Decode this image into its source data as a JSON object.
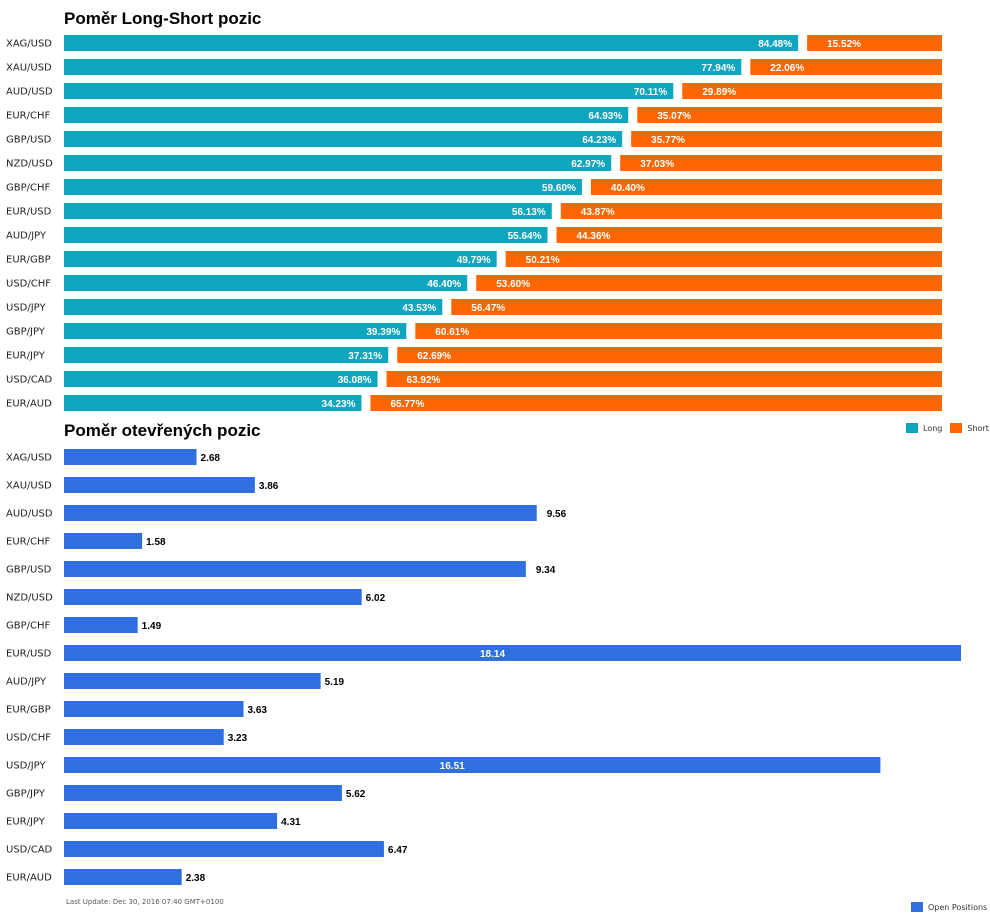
{
  "colors": {
    "long": "#0ea5be",
    "short": "#ff6600",
    "open": "#2f6fde"
  },
  "chart_data": [
    {
      "type": "bar",
      "title": "Poměr Long-Short pozic",
      "categories": [
        "XAG/USD",
        "XAU/USD",
        "AUD/USD",
        "EUR/CHF",
        "GBP/USD",
        "NZD/USD",
        "GBP/CHF",
        "EUR/USD",
        "AUD/JPY",
        "EUR/GBP",
        "USD/CHF",
        "USD/JPY",
        "GBP/JPY",
        "EUR/JPY",
        "USD/CAD",
        "EUR/AUD"
      ],
      "series": [
        {
          "name": "Long",
          "values": [
            84.48,
            77.94,
            70.11,
            64.93,
            64.23,
            62.97,
            59.6,
            56.13,
            55.64,
            49.79,
            46.4,
            43.53,
            39.39,
            37.31,
            36.08,
            34.23
          ],
          "labels": [
            "84.48%",
            "77.94%",
            "70.11%",
            "64.93%",
            "64.23%",
            "62.97%",
            "59.60%",
            "56.13%",
            "55.64%",
            "49.79%",
            "46.40%",
            "43.53%",
            "39.39%",
            "37.31%",
            "36.08%",
            "34.23%"
          ]
        },
        {
          "name": "Short",
          "values": [
            15.52,
            22.06,
            29.89,
            35.07,
            35.77,
            37.03,
            40.4,
            43.87,
            44.36,
            50.21,
            53.6,
            56.47,
            60.61,
            62.69,
            63.92,
            65.77
          ],
          "labels": [
            "15.52%",
            "22.06%",
            "29.89%",
            "35.07%",
            "35.77%",
            "37.03%",
            "40.40%",
            "43.87%",
            "44.36%",
            "50.21%",
            "53.60%",
            "56.47%",
            "60.61%",
            "62.69%",
            "63.92%",
            "65.77%"
          ]
        }
      ],
      "legend": "bottom-right"
    },
    {
      "type": "bar",
      "title": "Poměr otevřených pozic",
      "categories": [
        "XAG/USD",
        "XAU/USD",
        "AUD/USD",
        "EUR/CHF",
        "GBP/USD",
        "NZD/USD",
        "GBP/CHF",
        "EUR/USD",
        "AUD/JPY",
        "EUR/GBP",
        "USD/CHF",
        "USD/JPY",
        "GBP/JPY",
        "EUR/JPY",
        "USD/CAD",
        "EUR/AUD"
      ],
      "series": [
        {
          "name": "Open Positions",
          "values": [
            2.68,
            3.86,
            9.56,
            1.58,
            9.34,
            6.02,
            1.49,
            18.14,
            5.19,
            3.63,
            3.23,
            16.51,
            5.62,
            4.31,
            6.47,
            2.38
          ],
          "labels": [
            "2.68",
            "3.86",
            "9.56",
            "1.58",
            "9.34",
            "6.02",
            "1.49",
            "18.14",
            "5.19",
            "3.63",
            "3.23",
            "16.51",
            "5.62",
            "4.31",
            "6.47",
            "2.38"
          ]
        }
      ],
      "legend": "bottom-right"
    }
  ],
  "footer": {
    "last_update": "Last Update: Dec 30, 2016 07:40 GMT+0100"
  }
}
